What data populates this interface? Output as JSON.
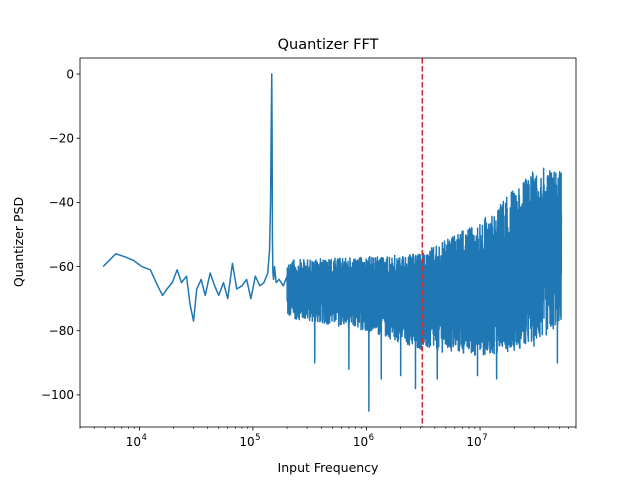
{
  "chart_data": {
    "type": "line",
    "title": "Quantizer FFT",
    "xlabel": "Input Frequency",
    "ylabel": "Quantizer PSD",
    "xscale": "log",
    "xlim": [
      3000,
      70000000
    ],
    "ylim": [
      -110,
      5
    ],
    "grid": false,
    "legend": "none",
    "line_color": "#1f77b4",
    "marker_color": "#d62728",
    "x_ticks": [
      {
        "base": "10",
        "exp": "4",
        "value": 10000
      },
      {
        "base": "10",
        "exp": "5",
        "value": 100000
      },
      {
        "base": "10",
        "exp": "6",
        "value": 1000000
      },
      {
        "base": "10",
        "exp": "7",
        "value": 10000000
      }
    ],
    "y_ticks": [
      {
        "label": "0",
        "value": 0
      },
      {
        "label": "−20",
        "value": -20
      },
      {
        "label": "−40",
        "value": -40
      },
      {
        "label": "−60",
        "value": -60
      },
      {
        "label": "−80",
        "value": -80
      },
      {
        "label": "−100",
        "value": -100
      }
    ],
    "vline": {
      "x": 3100000,
      "style": "dashed",
      "color": "#d62728"
    },
    "series": [
      {
        "x": [
          4800,
          6200,
          7500,
          8800,
          10500,
          12500,
          14500,
          16000,
          17500,
          19500,
          21500,
          23500,
          26000,
          28000,
          30000,
          32000,
          35000,
          38000,
          42000,
          46000,
          50000,
          55000,
          60000,
          66000,
          72000,
          80000,
          88000,
          96000,
          105000,
          115000,
          125000,
          135000,
          140000,
          143000,
          145000,
          146500,
          147500,
          148500,
          150000,
          152000,
          155000,
          160000,
          170000,
          185000,
          200000
        ],
        "y": [
          -60,
          -56,
          -57,
          -58,
          -60,
          -61,
          -66,
          -69,
          -67,
          -65,
          -61,
          -65,
          -63,
          -72,
          -77,
          -67,
          -64,
          -69,
          -62,
          -66,
          -69,
          -65,
          -70,
          -59,
          -67,
          -66,
          -64,
          -70,
          -63,
          -66,
          -65,
          -62,
          -55,
          -40,
          -15,
          0,
          -18,
          -52,
          -62,
          -64,
          -60,
          -65,
          -64,
          -66,
          -63
        ]
      }
    ],
    "noise_region": {
      "x_start": 200000,
      "x_end": 52000000,
      "note_upper_envelope_db": {
        "x": [
          200000,
          1000000,
          3000000,
          10000000,
          30000000,
          52000000
        ],
        "y": [
          -58,
          -57,
          -56,
          -46,
          -30,
          -28
        ]
      },
      "note_lower_envelope_db": {
        "x": [
          200000,
          1000000,
          3000000,
          10000000,
          30000000,
          52000000
        ],
        "y": [
          -76,
          -80,
          -86,
          -88,
          -85,
          -78
        ]
      },
      "deep_dips": [
        {
          "x": 350000,
          "y": -90
        },
        {
          "x": 700000,
          "y": -92
        },
        {
          "x": 1050000,
          "y": -105
        },
        {
          "x": 1350000,
          "y": -95
        },
        {
          "x": 2000000,
          "y": -94
        },
        {
          "x": 2700000,
          "y": -98
        },
        {
          "x": 4200000,
          "y": -95
        },
        {
          "x": 9500000,
          "y": -94
        },
        {
          "x": 14000000,
          "y": -95
        },
        {
          "x": 48000000,
          "y": -90
        }
      ]
    }
  }
}
